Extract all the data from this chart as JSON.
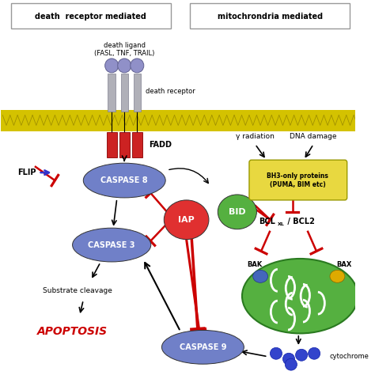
{
  "fig_width": 4.74,
  "fig_height": 4.74,
  "dpi": 100,
  "bg_color": "#ffffff",
  "box1_label": "death  receptor mediated",
  "box2_label": "mitochrondria mediated",
  "membrane_color": "#d4c200",
  "caspase8_label": "CASPASE 8",
  "caspase3_label": "CASPASE 3",
  "caspase9_label": "CASPASE 9",
  "iap_label": "IAP",
  "bid_label": "BID",
  "bh3_label": "BH3-only proteins\n(PUMA, BIM etc)",
  "bak_label": "BAK",
  "bax_label": "BAX",
  "fadd_label": "FADD",
  "flip_label": "FLIP",
  "death_ligand_label": "death ligand\n(FASL, TNF, TRAIL)",
  "death_receptor_label": "death receptor",
  "substrate_label": "Substrate cleavage",
  "apoptosis_label": "APOPTOSIS",
  "gamma_label": "γ radiation",
  "dna_label": "DNA damage",
  "cytochrome_label": "cytochrome",
  "blue_oval": "#7080c8",
  "red_circle": "#e03030",
  "green_circle": "#55b040",
  "green_mito": "#55b040",
  "yellow_box": "#e8d840",
  "arrow_black": "#000000",
  "arrow_red": "#cc0000",
  "receptor_purple": "#9090c8",
  "receptor_gray": "#b0b0b8",
  "fadd_red": "#cc2222"
}
